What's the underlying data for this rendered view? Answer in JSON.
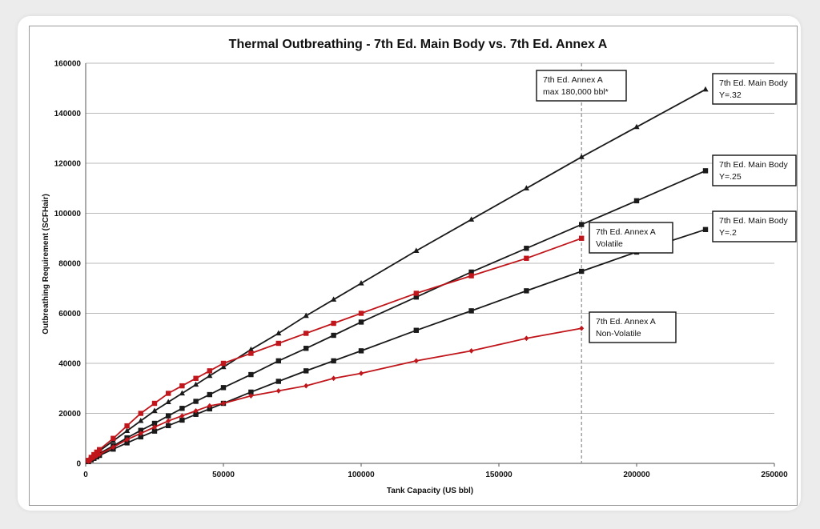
{
  "chart_data": {
    "type": "line",
    "title": "Thermal Outbreathing - 7th Ed. Main Body vs. 7th Ed. Annex A",
    "xlabel": "Tank Capacity (US bbl)",
    "ylabel": "Outbreathing Requirement (SCFHair)",
    "xlim": [
      0,
      250000
    ],
    "ylim": [
      0,
      160000
    ],
    "xticks": [
      0,
      50000,
      100000,
      150000,
      200000,
      250000
    ],
    "yticks": [
      0,
      20000,
      40000,
      60000,
      80000,
      100000,
      120000,
      140000,
      160000
    ],
    "grid": "horizontal",
    "colors": {
      "black": "#1a1a1a",
      "red": "#c0161b",
      "refline": "#8c8c8c"
    },
    "series": [
      {
        "color": "#1a1a1a",
        "marker": "triangle",
        "x": [
          1000,
          2000,
          3000,
          4000,
          5000,
          10000,
          15000,
          20000,
          25000,
          30000,
          35000,
          40000,
          45000,
          50000,
          60000,
          70000,
          80000,
          90000,
          100000,
          120000,
          140000,
          160000,
          180000,
          200000,
          225000
        ],
        "y": [
          1100,
          2200,
          3300,
          4200,
          5000,
          9000,
          13000,
          17000,
          21000,
          24500,
          28000,
          31500,
          35000,
          38500,
          45500,
          52000,
          59000,
          65500,
          72000,
          85000,
          97500,
          110000,
          122500,
          134500,
          149500
        ]
      },
      {
        "color": "#1a1a1a",
        "marker": "square",
        "x": [
          1000,
          2000,
          3000,
          4000,
          5000,
          10000,
          15000,
          20000,
          25000,
          30000,
          35000,
          40000,
          45000,
          50000,
          60000,
          70000,
          80000,
          90000,
          100000,
          120000,
          140000,
          160000,
          180000,
          200000,
          225000
        ],
        "y": [
          900,
          1700,
          2500,
          3300,
          4000,
          7000,
          10200,
          13200,
          16000,
          19000,
          22000,
          24800,
          27500,
          30300,
          35500,
          41000,
          46000,
          51200,
          56500,
          66500,
          76500,
          86000,
          95500,
          105000,
          117000
        ]
      },
      {
        "color": "#1a1a1a",
        "marker": "square",
        "x": [
          1000,
          2000,
          3000,
          4000,
          5000,
          10000,
          15000,
          20000,
          25000,
          30000,
          35000,
          40000,
          45000,
          50000,
          60000,
          70000,
          80000,
          90000,
          100000,
          120000,
          140000,
          160000,
          180000,
          200000,
          225000
        ],
        "y": [
          700,
          1400,
          2000,
          2600,
          3200,
          5700,
          8200,
          10600,
          12900,
          15100,
          17300,
          19600,
          21800,
          24000,
          28500,
          32800,
          37000,
          41000,
          45000,
          53200,
          61000,
          69000,
          76800,
          84500,
          93500
        ]
      },
      {
        "color": "#c0161b",
        "marker": "square",
        "x": [
          1000,
          2000,
          3000,
          4000,
          5000,
          10000,
          15000,
          20000,
          25000,
          30000,
          35000,
          40000,
          45000,
          50000,
          60000,
          70000,
          80000,
          90000,
          100000,
          120000,
          140000,
          160000,
          180000
        ],
        "y": [
          1200,
          2400,
          3500,
          4500,
          5500,
          10000,
          15000,
          20000,
          24000,
          28000,
          31000,
          34000,
          37000,
          40000,
          44000,
          48000,
          52000,
          56000,
          60000,
          68000,
          75000,
          82000,
          90000
        ]
      },
      {
        "color": "#c0161b",
        "marker": "diamond",
        "x": [
          1000,
          2000,
          3000,
          4000,
          5000,
          10000,
          15000,
          20000,
          25000,
          30000,
          35000,
          40000,
          45000,
          50000,
          60000,
          70000,
          80000,
          90000,
          100000,
          120000,
          140000,
          160000,
          180000
        ],
        "y": [
          800,
          1600,
          2300,
          3000,
          3600,
          6500,
          9500,
          12000,
          14500,
          17000,
          19000,
          21000,
          23000,
          24000,
          27000,
          29000,
          31000,
          34000,
          36000,
          41000,
          45000,
          50000,
          54000
        ]
      }
    ],
    "reference_line": {
      "x": 180000,
      "style": "dashed"
    },
    "annotations": [
      {
        "id": "annex-max",
        "lines": [
          "7th Ed. Annex A",
          "max 180,000 bbl*"
        ]
      },
      {
        "id": "main-32",
        "lines": [
          "7th Ed. Main Body",
          "Y=.32"
        ]
      },
      {
        "id": "main-25",
        "lines": [
          "7th Ed. Main Body",
          "Y=.25"
        ]
      },
      {
        "id": "main-2",
        "lines": [
          "7th Ed. Main Body",
          "Y=.2"
        ]
      },
      {
        "id": "annex-volatile",
        "lines": [
          "7th Ed. Annex A",
          "Volatile"
        ]
      },
      {
        "id": "annex-nonvolatile",
        "lines": [
          "7th Ed. Annex A",
          "Non-Volatile"
        ]
      }
    ]
  }
}
